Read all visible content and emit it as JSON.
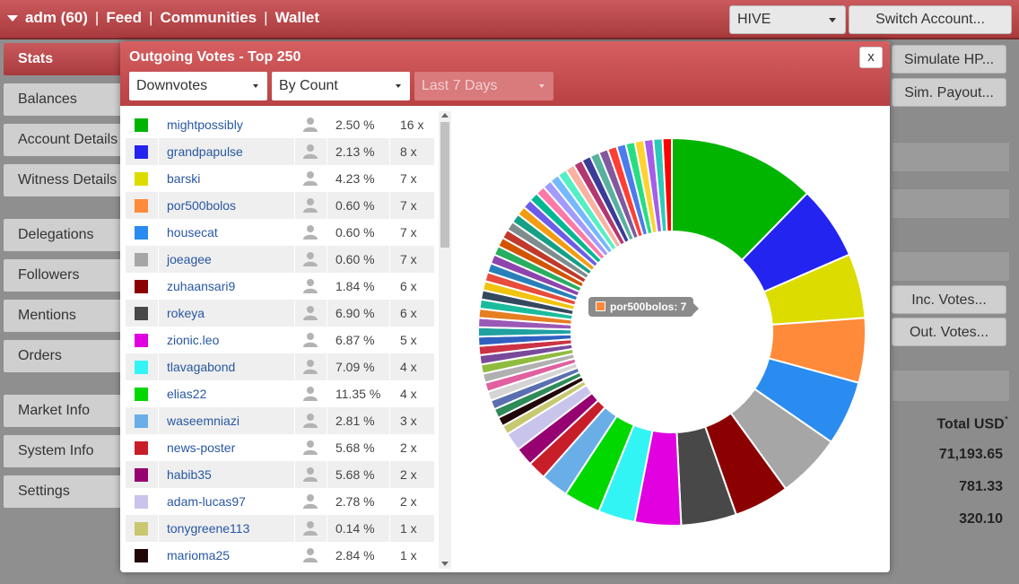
{
  "header": {
    "account": "adm (60)",
    "nav": [
      "Feed",
      "Communities",
      "Wallet"
    ],
    "chain_select": "HIVE",
    "switch_account": "Switch Account..."
  },
  "sidebar": {
    "items": [
      {
        "label": "Stats",
        "active": true
      },
      {
        "label": "Balances"
      },
      {
        "label": "Account Details"
      },
      {
        "label": "Witness Details"
      },
      {
        "label": "Delegations"
      },
      {
        "label": "Followers"
      },
      {
        "label": "Mentions"
      },
      {
        "label": "Orders"
      },
      {
        "label": "Market Info"
      },
      {
        "label": "System Info"
      },
      {
        "label": "Settings"
      }
    ]
  },
  "right_panel": {
    "simulate_hp": "Simulate HP...",
    "sim_payout": "Sim. Payout...",
    "inc_votes": "Inc. Votes...",
    "out_votes": "Out. Votes...",
    "total_usd_header": "Total USD",
    "total_usd_marker": "*",
    "values": [
      "71,193.65",
      "781.33",
      "320.10"
    ]
  },
  "modal": {
    "title": "Outgoing Votes - Top 250",
    "close": "x",
    "vote_type": "Downvotes",
    "sort_by": "By Count",
    "period": "Last 7 Days",
    "rows": [
      {
        "color": "#00b400",
        "name": "mightpossibly",
        "pct": "2.50 %",
        "count": "16 x"
      },
      {
        "color": "#2424f0",
        "name": "grandpapulse",
        "pct": "2.13 %",
        "count": "8 x"
      },
      {
        "color": "#dcdc00",
        "name": "barski",
        "pct": "4.23 %",
        "count": "7 x"
      },
      {
        "color": "#ff8a3a",
        "name": "por500bolos",
        "pct": "0.60 %",
        "count": "7 x"
      },
      {
        "color": "#2a8cf0",
        "name": "housecat",
        "pct": "0.60 %",
        "count": "7 x"
      },
      {
        "color": "#a6a6a6",
        "name": "joeagee",
        "pct": "0.60 %",
        "count": "7 x"
      },
      {
        "color": "#8b0000",
        "name": "zuhaansari9",
        "pct": "1.84 %",
        "count": "6 x"
      },
      {
        "color": "#484848",
        "name": "rokeya",
        "pct": "6.90 %",
        "count": "6 x"
      },
      {
        "color": "#e000e0",
        "name": "zionic.leo",
        "pct": "6.87 %",
        "count": "5 x"
      },
      {
        "color": "#33f4f4",
        "name": "tlavagabond",
        "pct": "7.09 %",
        "count": "4 x"
      },
      {
        "color": "#00d800",
        "name": "elias22",
        "pct": "11.35 %",
        "count": "4 x"
      },
      {
        "color": "#6aaee8",
        "name": "waseemniazi",
        "pct": "2.81 %",
        "count": "3 x"
      },
      {
        "color": "#c81e2a",
        "name": "news-poster",
        "pct": "5.68 %",
        "count": "2 x"
      },
      {
        "color": "#960070",
        "name": "habib35",
        "pct": "5.68 %",
        "count": "2 x"
      },
      {
        "color": "#c8c4ec",
        "name": "adam-lucas97",
        "pct": "2.78 %",
        "count": "2 x"
      },
      {
        "color": "#c8c870",
        "name": "tonygreene113",
        "pct": "0.14 %",
        "count": "1 x"
      },
      {
        "color": "#200808",
        "name": "marioma25",
        "pct": "2.84 %",
        "count": "1 x"
      }
    ],
    "tooltip": "por500bolos: 7",
    "tooltip_color": "#ff8a3a"
  },
  "chart_data": {
    "type": "pie",
    "style": "donut",
    "labels": [
      "mightpossibly",
      "grandpapulse",
      "barski",
      "por500bolos",
      "housecat",
      "joeagee",
      "zuhaansari9",
      "rokeya",
      "zionic.leo",
      "tlavagabond",
      "elias22",
      "waseemniazi",
      "news-poster",
      "habib35",
      "adam-lucas97",
      "tonygreene113",
      "marioma25"
    ],
    "values": [
      16,
      8,
      7,
      7,
      7,
      7,
      6,
      6,
      5,
      4,
      4,
      3,
      2,
      2,
      2,
      1,
      1
    ],
    "colors": [
      "#00b400",
      "#2424f0",
      "#dcdc00",
      "#ff8a3a",
      "#2a8cf0",
      "#a6a6a6",
      "#8b0000",
      "#484848",
      "#e000e0",
      "#33f4f4",
      "#00d800",
      "#6aaee8",
      "#c81e2a",
      "#960070",
      "#c8c4ec",
      "#c8c870",
      "#200808"
    ],
    "tail_count": 42,
    "tail_value": 1,
    "tail_colors": [
      "#2e8b57",
      "#5a6fb0",
      "#d4d4d4",
      "#e060a0",
      "#b0b0b0",
      "#8fbc3f",
      "#7a4a9a",
      "#cc3344",
      "#3060c0",
      "#20a0a0",
      "#9b59b6",
      "#e67e22",
      "#1abc9c",
      "#34495e",
      "#f1c40f",
      "#e74c3c",
      "#2980b9",
      "#8e44ad",
      "#27ae60",
      "#d35400",
      "#c0392b",
      "#7f8c8d",
      "#16a085",
      "#f39c12",
      "#6c5ce7",
      "#00b894",
      "#fd79a8",
      "#a29bfe",
      "#74b9ff",
      "#55efc4",
      "#fab1a0",
      "#b33771",
      "#3b3b98",
      "#58b19f",
      "#82589f",
      "#ff3f34",
      "#4b7bec",
      "#26de81",
      "#fed330",
      "#a55eea",
      "#2bcbba",
      "#ff0000"
    ]
  }
}
